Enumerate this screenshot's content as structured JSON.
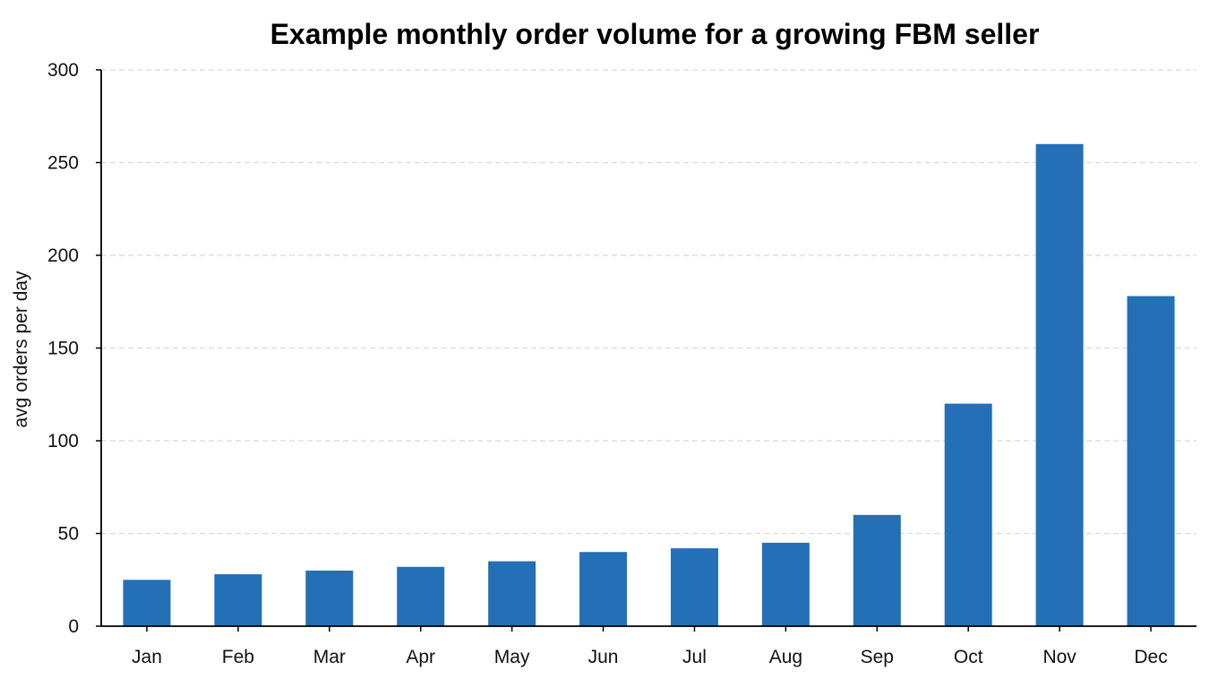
{
  "chart_data": {
    "type": "bar",
    "title": "Example monthly order volume for a growing FBM seller",
    "xlabel": "",
    "ylabel": "avg orders per day",
    "categories": [
      "Jan",
      "Feb",
      "Mar",
      "Apr",
      "May",
      "Jun",
      "Jul",
      "Aug",
      "Sep",
      "Oct",
      "Nov",
      "Dec"
    ],
    "values": [
      25,
      28,
      30,
      32,
      35,
      40,
      42,
      45,
      60,
      120,
      260,
      178
    ],
    "ylim": [
      0,
      300
    ],
    "yticks": [
      "0",
      "50",
      "100",
      "150",
      "200",
      "250",
      "300"
    ],
    "grid": true,
    "legend": "none",
    "colors": {
      "bar": "#2370B6",
      "grid": "#D5D9DE",
      "axis": "#000000"
    }
  }
}
